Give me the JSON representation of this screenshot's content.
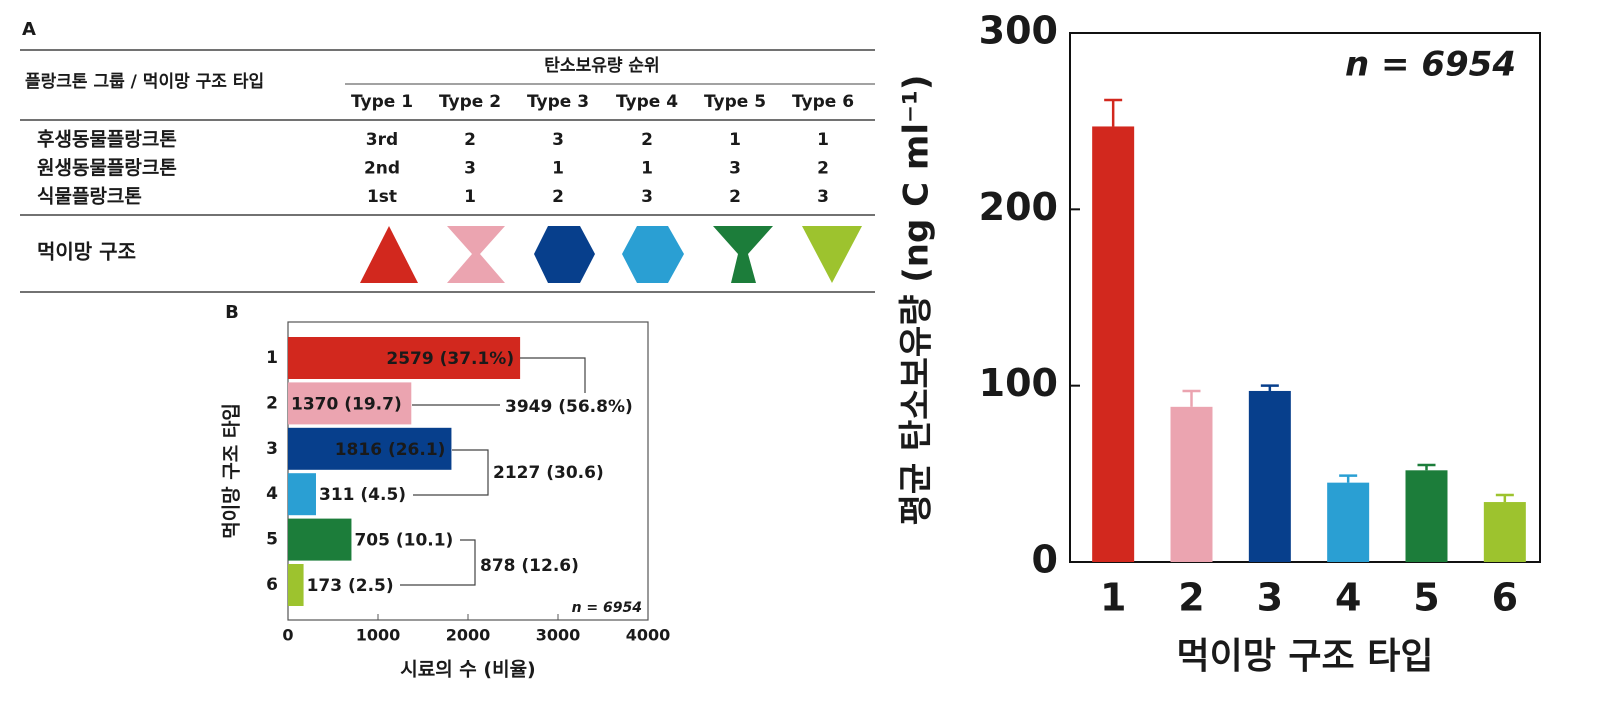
{
  "table": {
    "label": "A",
    "header_left": "플랑크톤 그룹 / 먹이망 구조 타입",
    "header_group": "탄소보유량 순위",
    "columns": [
      "Type 1",
      "Type 2",
      "Type 3",
      "Type 4",
      "Type 5",
      "Type 6"
    ],
    "rows": [
      {
        "name": "후생동물플랑크톤",
        "values": [
          "3rd",
          2,
          3,
          2,
          1,
          1
        ]
      },
      {
        "name": "원생동물플랑크톤",
        "values": [
          "2nd",
          3,
          1,
          1,
          3,
          2
        ]
      },
      {
        "name": "식물플랑크톤",
        "values": [
          "1st",
          1,
          2,
          3,
          2,
          3
        ]
      }
    ],
    "structure_label": "먹이망 구조"
  },
  "chart_data": [
    {
      "type": "hbar",
      "panel_label": "B",
      "y_label": "먹이망 구조 타입",
      "x_label": "시료의 수 (비율)",
      "annotation": "n = 6954",
      "categories": [
        "1",
        "2",
        "3",
        "4",
        "5",
        "6"
      ],
      "values": [
        2579,
        1370,
        1816,
        311,
        705,
        173
      ],
      "value_labels": [
        "2579 (37.1%)",
        "1370 (19.7)",
        "1816 (26.1)",
        "311 (4.5)",
        "705 (10.1)",
        "173 (2.5)"
      ],
      "colors": [
        "#d2281e",
        "#eba4b0",
        "#073f8c",
        "#2a9fd3",
        "#1c7d3a",
        "#9dc32e"
      ],
      "group_labels": [
        "3949 (56.8%)",
        "2127 (30.6)",
        "878 (12.6)"
      ],
      "xlim": [
        0,
        4000
      ],
      "xticks": [
        0,
        1000,
        2000,
        3000,
        4000
      ]
    },
    {
      "type": "bar",
      "y_label": "평균 탄소보유량 (ng C ml⁻¹)",
      "x_label": "먹이망 구조 타입",
      "annotation": "n = 6954",
      "categories": [
        "1",
        "2",
        "3",
        "4",
        "5",
        "6"
      ],
      "values": [
        247,
        88,
        97,
        45,
        52,
        34
      ],
      "errors": [
        15,
        9,
        3,
        4,
        3,
        4
      ],
      "colors": [
        "#d2281e",
        "#eba4b0",
        "#073f8c",
        "#2a9fd3",
        "#1c7d3a",
        "#9dc32e"
      ],
      "ylim": [
        0,
        300
      ],
      "yticks": [
        0,
        100,
        200,
        300
      ]
    }
  ]
}
